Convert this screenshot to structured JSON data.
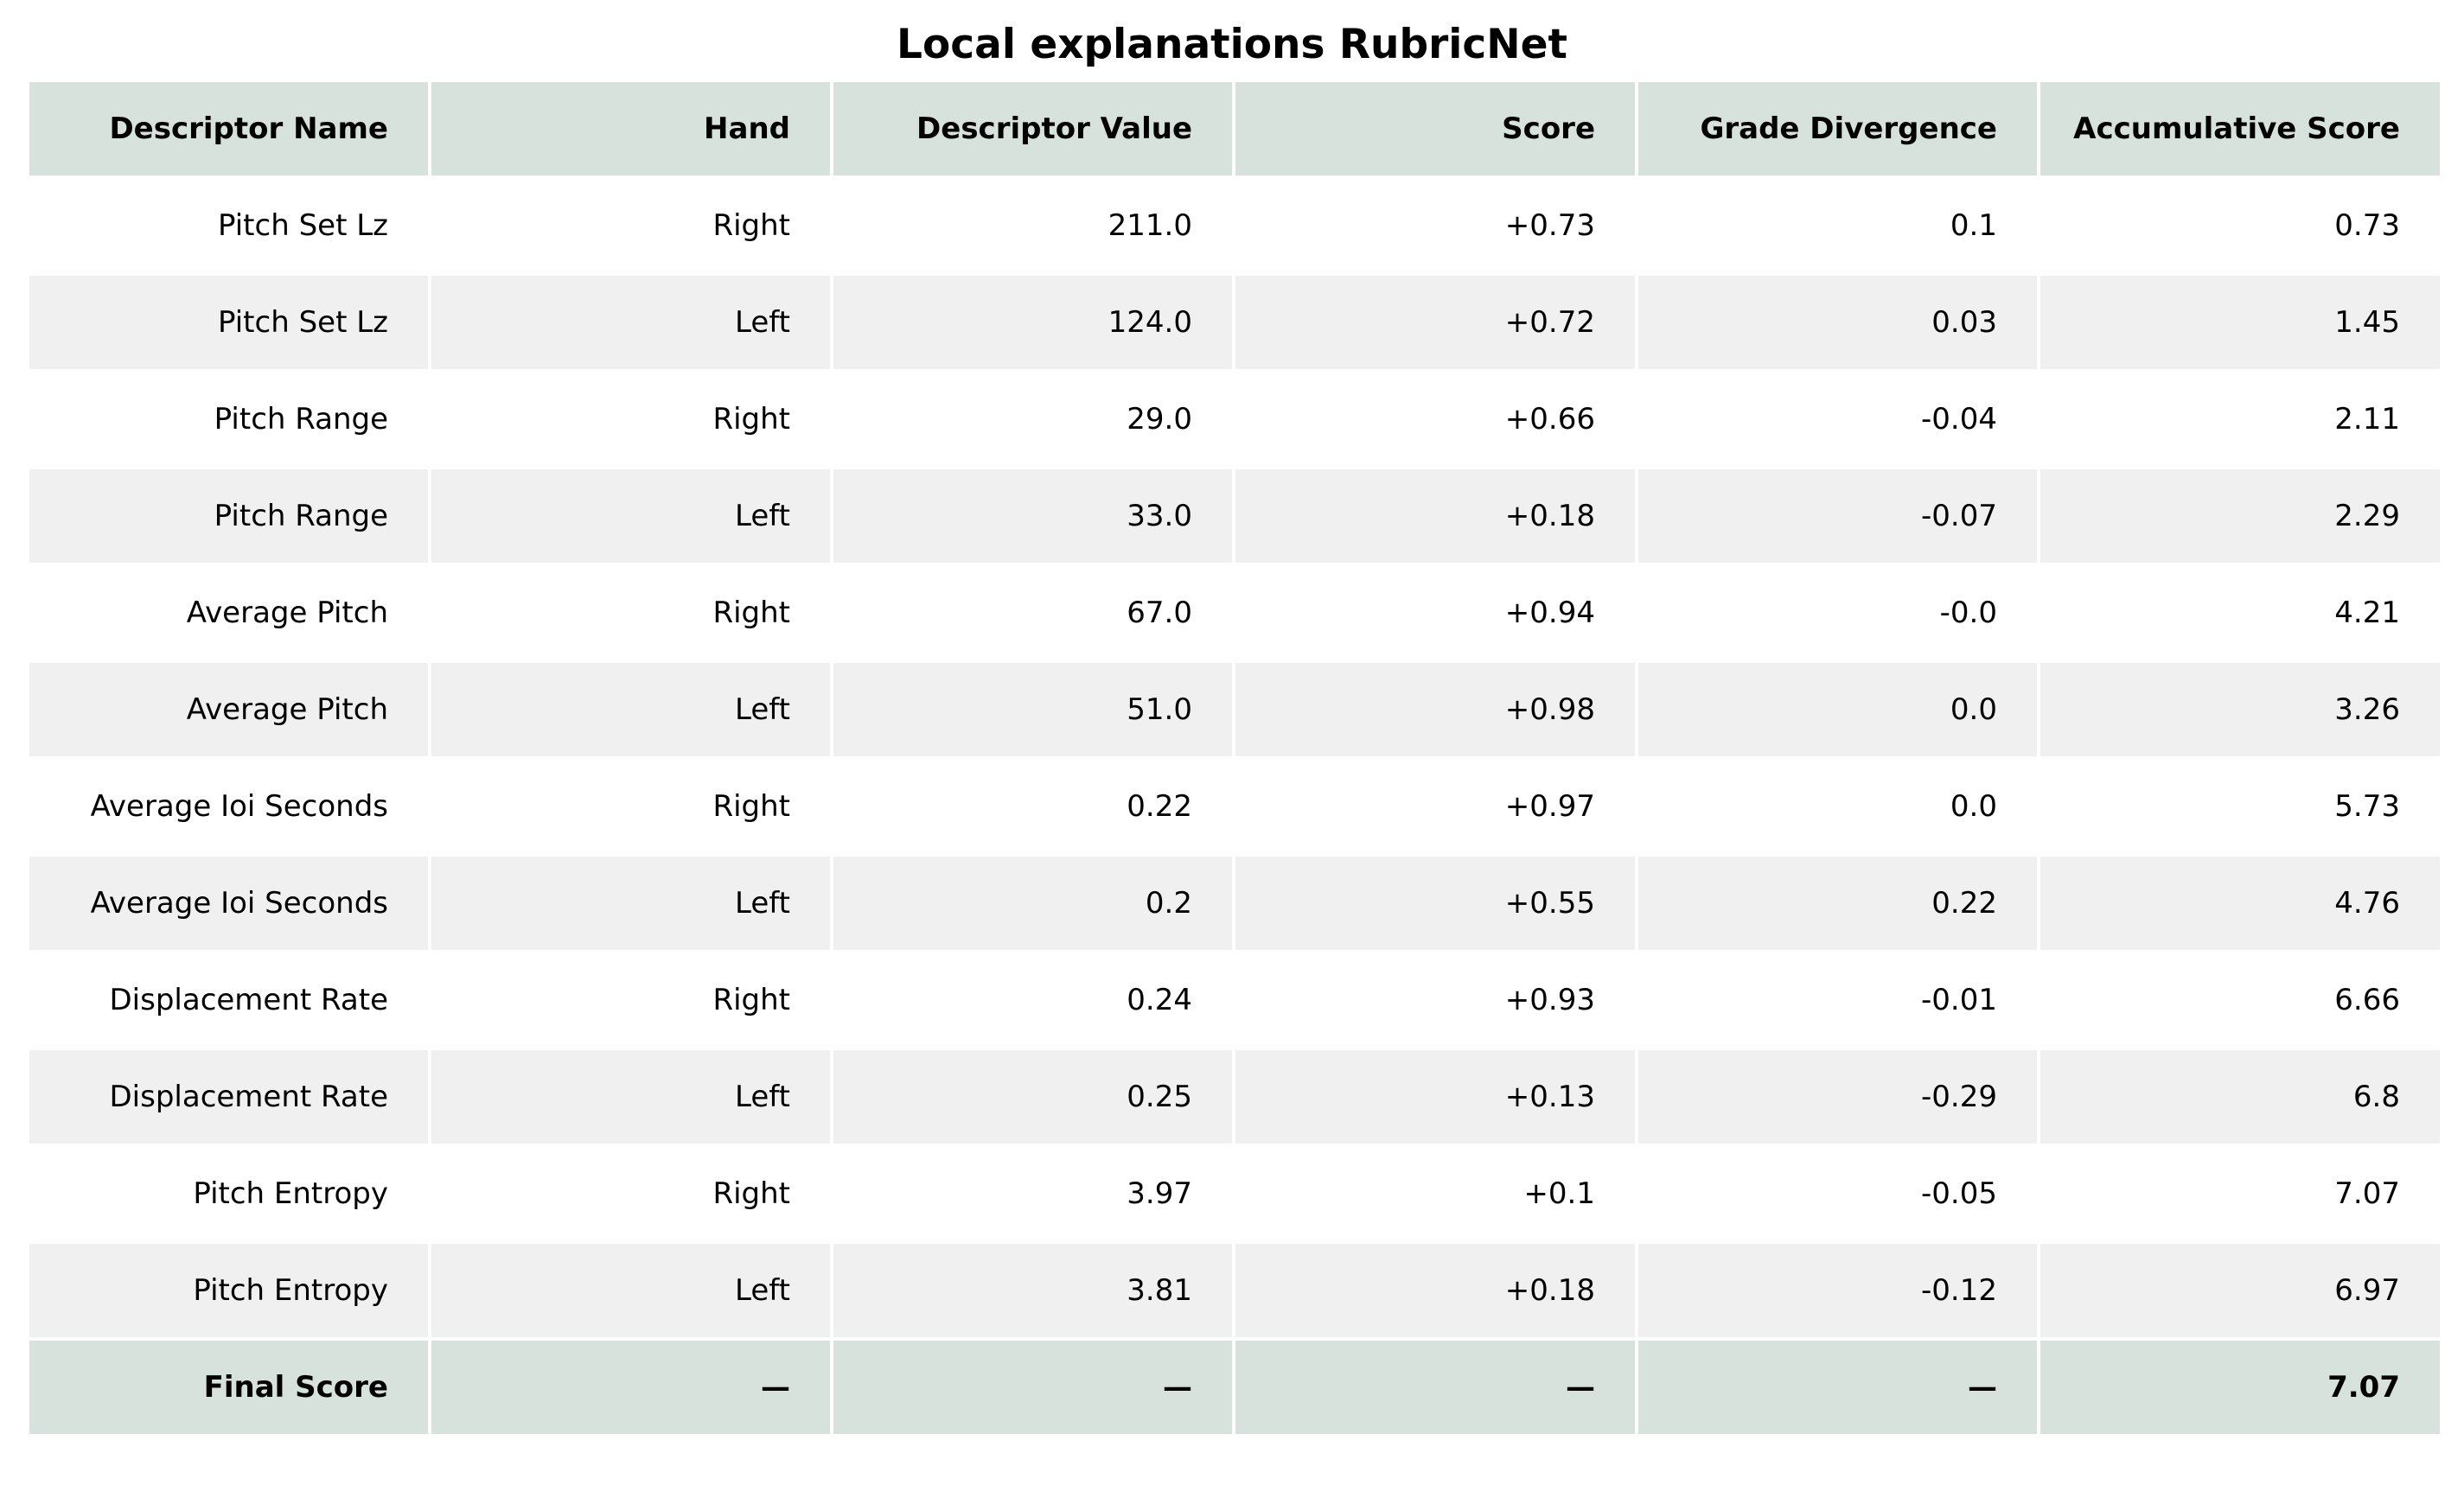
{
  "chart_data": {
    "type": "table",
    "title": "Local explanations RubricNet",
    "columns": [
      "Descriptor Name",
      "Hand",
      "Descriptor Value",
      "Score",
      "Grade Divergence",
      "Accumulative Score"
    ],
    "rows": [
      [
        "Pitch Set Lz",
        "Right",
        "211.0",
        "+0.73",
        "0.1",
        "0.73"
      ],
      [
        "Pitch Set Lz",
        "Left",
        "124.0",
        "+0.72",
        "0.03",
        "1.45"
      ],
      [
        "Pitch Range",
        "Right",
        "29.0",
        "+0.66",
        "-0.04",
        "2.11"
      ],
      [
        "Pitch Range",
        "Left",
        "33.0",
        "+0.18",
        "-0.07",
        "2.29"
      ],
      [
        "Average Pitch",
        "Right",
        "67.0",
        "+0.94",
        "-0.0",
        "4.21"
      ],
      [
        "Average Pitch",
        "Left",
        "51.0",
        "+0.98",
        "0.0",
        "3.26"
      ],
      [
        "Average Ioi Seconds",
        "Right",
        "0.22",
        "+0.97",
        "0.0",
        "5.73"
      ],
      [
        "Average Ioi Seconds",
        "Left",
        "0.2",
        "+0.55",
        "0.22",
        "4.76"
      ],
      [
        "Displacement Rate",
        "Right",
        "0.24",
        "+0.93",
        "-0.01",
        "6.66"
      ],
      [
        "Displacement Rate",
        "Left",
        "0.25",
        "+0.13",
        "-0.29",
        "6.8"
      ],
      [
        "Pitch Entropy",
        "Right",
        "3.97",
        "+0.1",
        "-0.05",
        "7.07"
      ],
      [
        "Pitch Entropy",
        "Left",
        "3.81",
        "+0.18",
        "-0.12",
        "6.97"
      ]
    ],
    "final_row": [
      "Final Score",
      "—",
      "—",
      "—",
      "—",
      "7.07"
    ]
  },
  "colors": {
    "header_background": "#d7e2dd",
    "alternate_row_background": "#f0f0f0",
    "row_background": "#ffffff",
    "border": "#ffffff"
  }
}
